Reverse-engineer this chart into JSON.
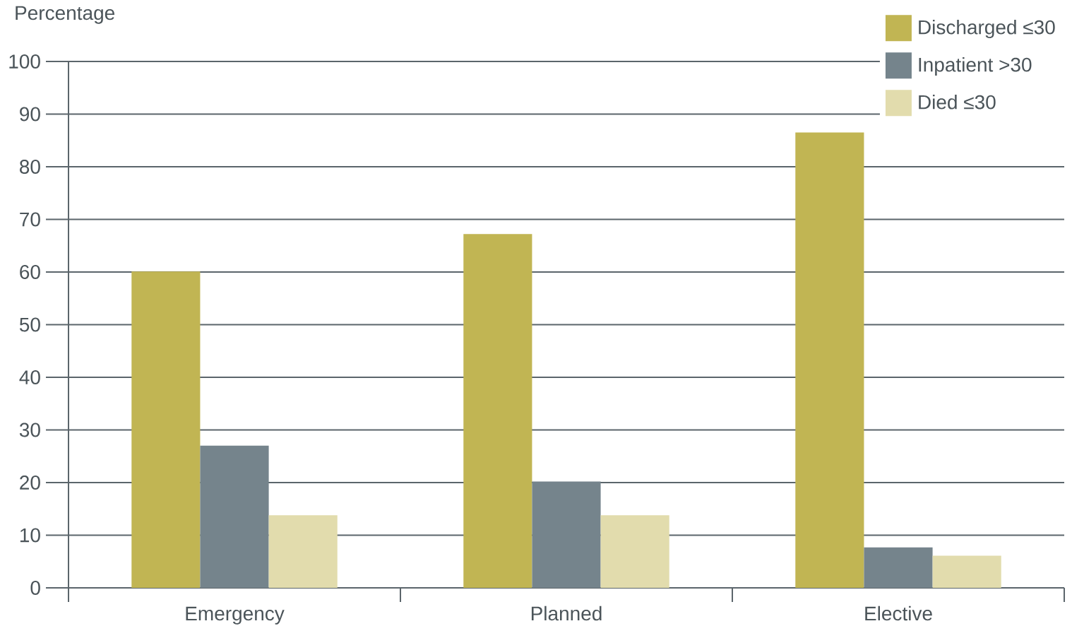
{
  "chart_data": {
    "type": "bar",
    "ylabel": "Percentage",
    "categories": [
      "Emergency",
      "Planned",
      "Elective"
    ],
    "series": [
      {
        "name": "Discharged ≤30",
        "color": "#c1b553",
        "values": [
          60.1,
          67.2,
          86.5
        ]
      },
      {
        "name": "Inpatient >30",
        "color": "#75848c",
        "values": [
          27.0,
          20.2,
          7.7
        ]
      },
      {
        "name": "Died ≤30",
        "color": "#e2dcad",
        "values": [
          13.8,
          13.8,
          6.1
        ]
      }
    ],
    "ylim": [
      0,
      100
    ],
    "yticks": [
      0,
      10,
      20,
      30,
      40,
      50,
      60,
      70,
      80,
      90,
      100
    ],
    "grid": "y",
    "legend": "top right"
  }
}
